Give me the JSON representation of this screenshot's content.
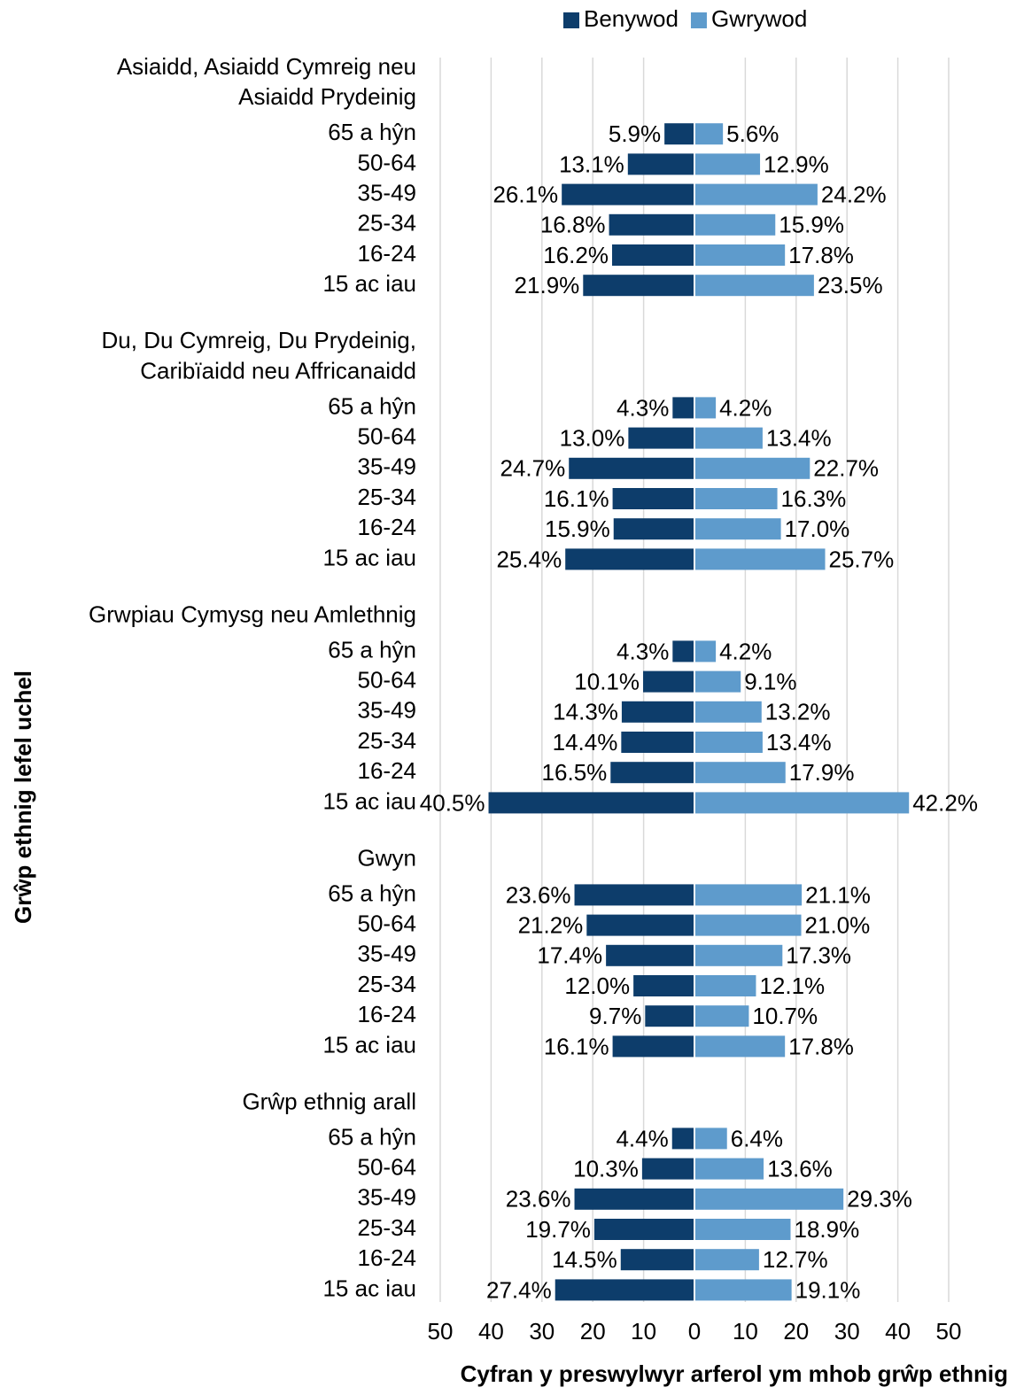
{
  "chart_data": {
    "type": "butterfly",
    "x_label": "Cyfran y preswylwyr arferol ym mhob grŵp ethnig",
    "y_label": "Grŵp ethnig lefel uchel",
    "series": [
      {
        "name": "Benywod",
        "color": "#0d3d6b",
        "side": "left"
      },
      {
        "name": "Gwrywod",
        "color": "#5e9bcc",
        "side": "right"
      }
    ],
    "xlim": [
      -50,
      50
    ],
    "xticks": [
      {
        "value": -50,
        "label": "50"
      },
      {
        "value": -40,
        "label": "40"
      },
      {
        "value": -30,
        "label": "30"
      },
      {
        "value": -20,
        "label": "20"
      },
      {
        "value": -10,
        "label": "10"
      },
      0,
      10,
      20,
      30,
      40,
      50
    ],
    "grid": true,
    "legend": "top",
    "groups": [
      {
        "name": [
          "Asiaidd, Asiaidd Cymreig neu",
          "Asiaidd Prydeinig"
        ],
        "categories": [
          "65 a hŷn",
          "50-64",
          "35-49",
          "25-34",
          "16-24",
          "15 ac iau"
        ],
        "series": [
          {
            "values": [
              5.9,
              13.1,
              26.1,
              16.8,
              16.2,
              21.9
            ],
            "value_labels": [
              "5.9%",
              "13.1%",
              "26.1%",
              "16.8%",
              "16.2%",
              "21.9%"
            ]
          },
          {
            "values": [
              5.6,
              12.9,
              24.2,
              15.9,
              17.8,
              23.5
            ],
            "value_labels": [
              "5.6%",
              "12.9%",
              "24.2%",
              "15.9%",
              "17.8%",
              "23.5%"
            ]
          }
        ]
      },
      {
        "name": [
          "Du, Du Cymreig, Du Prydeinig,",
          "Caribïaidd neu Affricanaidd"
        ],
        "categories": [
          "65 a hŷn",
          "50-64",
          "35-49",
          "25-34",
          "16-24",
          "15 ac iau"
        ],
        "series": [
          {
            "values": [
              4.3,
              13.0,
              24.7,
              16.1,
              15.9,
              25.4
            ],
            "value_labels": [
              "4.3%",
              "13.0%",
              "24.7%",
              "16.1%",
              "15.9%",
              "25.4%"
            ]
          },
          {
            "values": [
              4.2,
              13.4,
              22.7,
              16.3,
              17.0,
              25.7
            ],
            "value_labels": [
              "4.2%",
              "13.4%",
              "22.7%",
              "16.3%",
              "17.0%",
              "25.7%"
            ]
          }
        ]
      },
      {
        "name": [
          "Grwpiau Cymysg neu Amlethnig"
        ],
        "categories": [
          "65 a hŷn",
          "50-64",
          "35-49",
          "25-34",
          "16-24",
          "15 ac iau"
        ],
        "series": [
          {
            "values": [
              4.3,
              10.1,
              14.3,
              14.4,
              16.5,
              40.5
            ],
            "value_labels": [
              "4.3%",
              "10.1%",
              "14.3%",
              "14.4%",
              "16.5%",
              "40.5%"
            ]
          },
          {
            "values": [
              4.2,
              9.1,
              13.2,
              13.4,
              17.9,
              42.2
            ],
            "value_labels": [
              "4.2%",
              "9.1%",
              "13.2%",
              "13.4%",
              "17.9%",
              "42.2%"
            ]
          }
        ]
      },
      {
        "name": [
          "Gwyn"
        ],
        "categories": [
          "65 a hŷn",
          "50-64",
          "35-49",
          "25-34",
          "16-24",
          "15 ac iau"
        ],
        "series": [
          {
            "values": [
              23.6,
              21.2,
              17.4,
              12.0,
              9.7,
              16.1
            ],
            "value_labels": [
              "23.6%",
              "21.2%",
              "17.4%",
              "12.0%",
              "9.7%",
              "16.1%"
            ]
          },
          {
            "values": [
              21.1,
              21.0,
              17.3,
              12.1,
              10.7,
              17.8
            ],
            "value_labels": [
              "21.1%",
              "21.0%",
              "17.3%",
              "12.1%",
              "10.7%",
              "17.8%"
            ]
          }
        ]
      },
      {
        "name": [
          "Grŵp ethnig arall"
        ],
        "categories": [
          "65 a hŷn",
          "50-64",
          "35-49",
          "25-34",
          "16-24",
          "15 ac iau"
        ],
        "series": [
          {
            "values": [
              4.4,
              10.3,
              23.6,
              19.7,
              14.5,
              27.4
            ],
            "value_labels": [
              "4.4%",
              "10.3%",
              "23.6%",
              "19.7%",
              "14.5%",
              "27.4%"
            ]
          },
          {
            "values": [
              6.4,
              13.6,
              29.3,
              18.9,
              12.7,
              19.1
            ],
            "value_labels": [
              "6.4%",
              "13.6%",
              "29.3%",
              "18.9%",
              "12.7%",
              "19.1%"
            ]
          }
        ]
      }
    ]
  }
}
